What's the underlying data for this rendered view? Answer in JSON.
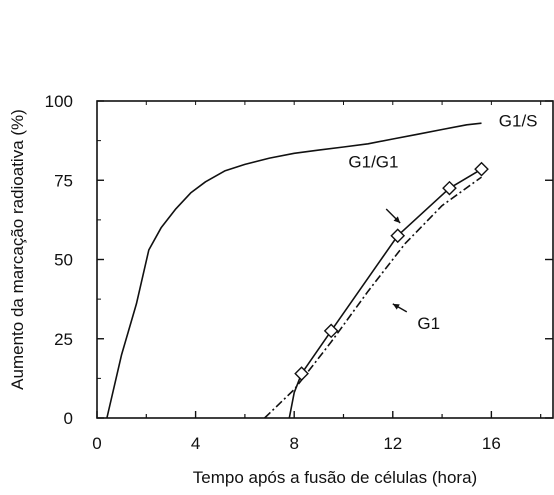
{
  "chart_data": {
    "type": "line",
    "xlabel": "Tempo após a fusão de células (hora)",
    "ylabel": "Aumento da marcação radioativa (%)",
    "xlim": [
      0,
      18.5
    ],
    "ylim": [
      0,
      100
    ],
    "x_ticks": [
      0,
      4,
      8,
      12,
      16
    ],
    "y_ticks": [
      0,
      25,
      50,
      75,
      100
    ],
    "x_tick_labels": [
      "0",
      "4",
      "8",
      "12",
      "16"
    ],
    "y_tick_labels": [
      "0",
      "25",
      "50",
      "75",
      "100"
    ],
    "series": [
      {
        "name": "G1/S",
        "style": "solid",
        "markers": false,
        "color": "#111111",
        "x": [
          0.4,
          1.0,
          1.6,
          2.1,
          2.6,
          3.2,
          3.8,
          4.4,
          5.2,
          6.0,
          7.0,
          8.0,
          9.0,
          10.0,
          11.0,
          12.0,
          13.0,
          14.0,
          15.0,
          15.6
        ],
        "y": [
          0,
          20,
          36,
          53,
          60,
          66,
          71,
          74.5,
          78,
          80,
          82,
          83.5,
          84.5,
          85.5,
          86.5,
          88,
          89.5,
          91,
          92.5,
          93
        ]
      },
      {
        "name": "G1/G1",
        "style": "solid",
        "markers": true,
        "color": "#111111",
        "x": [
          7.8,
          8.0,
          8.3,
          9.5,
          12.2,
          14.3,
          15.6
        ],
        "y": [
          0,
          8,
          14,
          27.5,
          57.5,
          72.5,
          78.5
        ]
      },
      {
        "name": "G1",
        "style": "dashdot",
        "markers": false,
        "color": "#111111",
        "x": [
          6.8,
          8.0,
          9.5,
          11.0,
          12.5,
          14.0,
          15.6
        ],
        "y": [
          0,
          9,
          24,
          40,
          55,
          67,
          76
        ]
      }
    ],
    "annotations": [
      {
        "text": "G1/S",
        "x": 16.3,
        "y": 92,
        "arrow": false
      },
      {
        "text": "G1/G1",
        "x": 10.2,
        "y": 79,
        "arrow": true,
        "arrow_to_x": 12.3,
        "arrow_to_y": 61.5
      },
      {
        "text": "G1",
        "x": 13.0,
        "y": 28,
        "arrow": true,
        "arrow_to_x": 12.0,
        "arrow_to_y": 36
      }
    ]
  }
}
